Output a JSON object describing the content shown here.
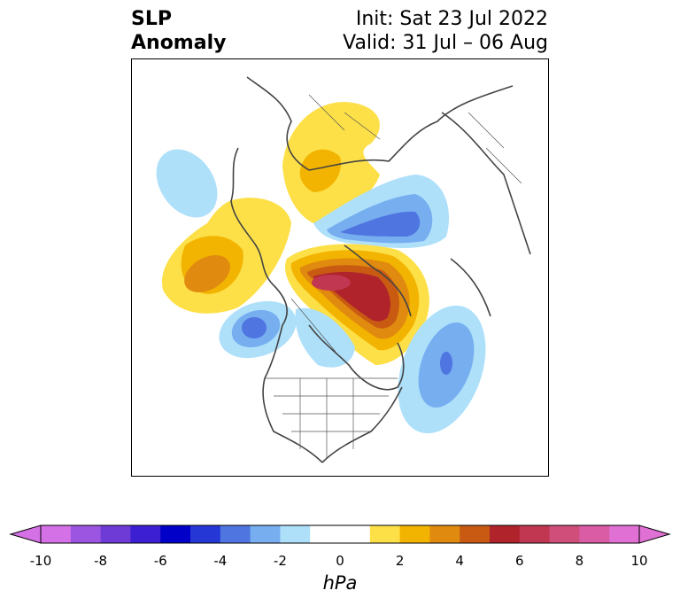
{
  "title": {
    "left_line1": "SLP",
    "left_line2": "Anomaly",
    "right_line1": "Init: Sat 23 Jul 2022",
    "right_line2": "Valid: 31 Jul – 06 Aug"
  },
  "colorbar": {
    "unit": "hPa",
    "min": -10,
    "max": 10,
    "ticks": [
      "-10",
      "-8",
      "-6",
      "-4",
      "-2",
      "0",
      "2",
      "4",
      "6",
      "8",
      "10"
    ],
    "tick_values": [
      -10,
      -8,
      -6,
      -4,
      -2,
      0,
      2,
      4,
      6,
      8,
      10
    ],
    "colors": [
      "#d571e6",
      "#9c55e0",
      "#6e3bd6",
      "#3c1fd3",
      "#0000c8",
      "#2538d6",
      "#4f75e0",
      "#76aef0",
      "#aee0fa",
      "#ffffff",
      "#ffffff",
      "#fde047",
      "#f2b400",
      "#e08a10",
      "#c95a12",
      "#b0232b",
      "#c13651",
      "#cf4f7a",
      "#d95ca5",
      "#e070d4"
    ]
  },
  "map_colors": {
    "light_blue": "#aee0fa",
    "mid_blue": "#76aef0",
    "blue": "#4f75e0",
    "yellow": "#fde047",
    "gold": "#f2b400",
    "orange": "#e08a10",
    "dark_orange": "#c95a12",
    "red": "#b0232b",
    "rose": "#c13651",
    "coast": "#444444",
    "border": "#555555"
  }
}
